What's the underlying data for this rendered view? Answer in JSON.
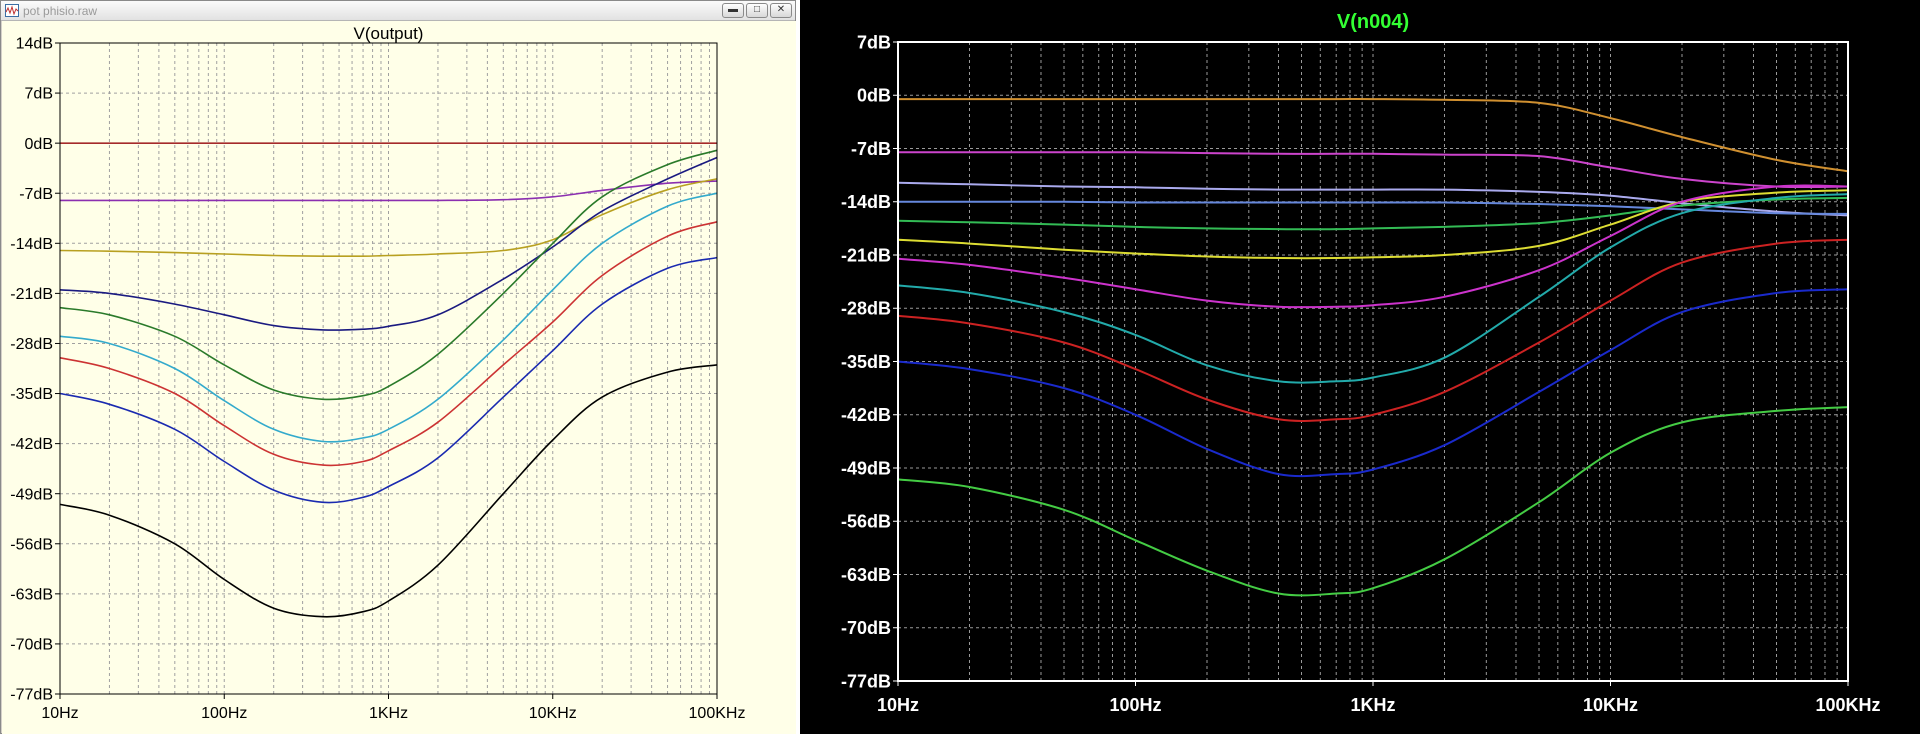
{
  "window": {
    "title": "pot phisio.raw",
    "minimize_icon": "minimize-icon",
    "maximize_icon": "maximize-icon",
    "close_icon": "close-icon"
  },
  "chart_data": [
    {
      "type": "line",
      "title": "V(output)",
      "x_scale": "log",
      "xlim": [
        10,
        100000
      ],
      "ylim": [
        -77,
        14
      ],
      "grid": true,
      "background": "#ffffe8",
      "x_tick_labels": [
        "10Hz",
        "100Hz",
        "1KHz",
        "10KHz",
        "100KHz"
      ],
      "y_tick_labels": [
        "14dB",
        "7dB",
        "0dB",
        "-7dB",
        "-14dB",
        "-21dB",
        "-28dB",
        "-35dB",
        "-42dB",
        "-49dB",
        "-56dB",
        "-63dB",
        "-70dB",
        "-77dB"
      ],
      "x": [
        10,
        20,
        50,
        100,
        200,
        400,
        700,
        1000,
        2000,
        5000,
        10000,
        20000,
        50000,
        100000
      ],
      "series": [
        {
          "color": "#a52a2a",
          "values": [
            0,
            0,
            0,
            0,
            0,
            0,
            0,
            0,
            0,
            0,
            0,
            0,
            0,
            0
          ]
        },
        {
          "color": "#8b2fb0",
          "values": [
            -8,
            -8,
            -8,
            -8,
            -8,
            -8,
            -8,
            -8,
            -8,
            -7.9,
            -7.5,
            -6.6,
            -5.6,
            -5.3
          ]
        },
        {
          "color": "#b8a020",
          "values": [
            -15,
            -15.1,
            -15.3,
            -15.5,
            -15.7,
            -15.8,
            -15.8,
            -15.7,
            -15.5,
            -15,
            -13.5,
            -10,
            -6.5,
            -5
          ]
        },
        {
          "color": "#1a1a80",
          "values": [
            -20.5,
            -21,
            -22.5,
            -24,
            -25.5,
            -26.1,
            -26,
            -25.6,
            -24,
            -19,
            -14.5,
            -9.5,
            -5,
            -2
          ]
        },
        {
          "color": "#2a7a2a",
          "values": [
            -23,
            -24,
            -27,
            -31,
            -34.5,
            -35.8,
            -35.3,
            -34,
            -29.5,
            -21,
            -14,
            -7.5,
            -3,
            -1
          ]
        },
        {
          "color": "#33aacc",
          "values": [
            -27,
            -28,
            -31.5,
            -36,
            -40,
            -41.7,
            -41.2,
            -40,
            -35.8,
            -27.5,
            -20.5,
            -14,
            -8.8,
            -7
          ]
        },
        {
          "color": "#cc3333",
          "values": [
            -30,
            -31.5,
            -35,
            -39.5,
            -43.5,
            -45,
            -44.5,
            -43,
            -39,
            -31,
            -25,
            -18.5,
            -13,
            -11
          ]
        },
        {
          "color": "#1a2ab0",
          "values": [
            -35,
            -36.5,
            -40,
            -44.5,
            -48.5,
            -50.2,
            -49.5,
            -48,
            -44,
            -35.5,
            -29,
            -22.5,
            -17.5,
            -16
          ]
        },
        {
          "color": "#000000",
          "values": [
            -50.5,
            -52,
            -56,
            -61,
            -65,
            -66.2,
            -65.5,
            -64,
            -59,
            -49,
            -41.5,
            -35.5,
            -32,
            -31
          ]
        }
      ]
    },
    {
      "type": "line",
      "title": "V(n004)",
      "x_scale": "log",
      "xlim": [
        10,
        100000
      ],
      "ylim": [
        -77,
        7
      ],
      "grid": true,
      "background": "#000000",
      "title_color": "#33ff33",
      "x_tick_labels": [
        "10Hz",
        "100Hz",
        "1KHz",
        "10KHz",
        "100KHz"
      ],
      "y_tick_labels": [
        "7dB",
        "0dB",
        "-7dB",
        "-14dB",
        "-21dB",
        "-28dB",
        "-35dB",
        "-42dB",
        "-49dB",
        "-56dB",
        "-63dB",
        "-70dB",
        "-77dB"
      ],
      "x": [
        10,
        20,
        50,
        100,
        200,
        400,
        700,
        1000,
        2000,
        5000,
        10000,
        20000,
        50000,
        100000
      ],
      "series": [
        {
          "color": "#d09030",
          "values": [
            -0.5,
            -0.5,
            -0.5,
            -0.5,
            -0.5,
            -0.5,
            -0.5,
            -0.5,
            -0.6,
            -1,
            -3,
            -5.5,
            -8.5,
            -10
          ]
        },
        {
          "color": "#cc44cc",
          "values": [
            -7.5,
            -7.5,
            -7.5,
            -7.5,
            -7.6,
            -7.7,
            -7.7,
            -7.7,
            -7.8,
            -8,
            -9.5,
            -11,
            -12,
            -12
          ]
        },
        {
          "color": "#aaaaee",
          "values": [
            -11.5,
            -11.7,
            -12,
            -12.1,
            -12.3,
            -12.4,
            -12.4,
            -12.4,
            -12.4,
            -12.7,
            -13.2,
            -14.2,
            -15.3,
            -15.8
          ]
        },
        {
          "color": "#6688dd",
          "values": [
            -14,
            -14,
            -14,
            -14.1,
            -14.1,
            -14.1,
            -14.1,
            -14.1,
            -14.1,
            -14.3,
            -14.6,
            -15,
            -15.5,
            -15.6
          ]
        },
        {
          "color": "#33bb55",
          "values": [
            -16.5,
            -16.7,
            -17,
            -17.3,
            -17.5,
            -17.6,
            -17.6,
            -17.5,
            -17.3,
            -16.8,
            -15.8,
            -14.5,
            -13.7,
            -13.5
          ]
        },
        {
          "color": "#dddd33",
          "values": [
            -19,
            -19.5,
            -20.3,
            -20.8,
            -21.2,
            -21.4,
            -21.4,
            -21.3,
            -21,
            -19.8,
            -17,
            -14,
            -12.8,
            -12.5
          ]
        },
        {
          "color": "#cc33cc",
          "values": [
            -21.5,
            -22.3,
            -24,
            -25.5,
            -27,
            -27.8,
            -27.8,
            -27.6,
            -26.5,
            -23,
            -18.5,
            -14,
            -12,
            -12
          ]
        },
        {
          "color": "#22aaaa",
          "values": [
            -25,
            -26,
            -28.5,
            -31.5,
            -35.5,
            -37.6,
            -37.6,
            -37.1,
            -34.5,
            -26.5,
            -20,
            -15.5,
            -13.5,
            -13
          ]
        },
        {
          "color": "#cc2222",
          "values": [
            -29,
            -30,
            -32.5,
            -36,
            -40,
            -42.6,
            -42.6,
            -42,
            -39,
            -32.5,
            -27,
            -22,
            -19.5,
            -19
          ]
        },
        {
          "color": "#1a2acc",
          "values": [
            -35,
            -36,
            -38.5,
            -42,
            -46.5,
            -49.8,
            -49.8,
            -49.2,
            -46,
            -39,
            -33.5,
            -28.5,
            -26,
            -25.5
          ]
        },
        {
          "color": "#44cc44",
          "values": [
            -50.5,
            -51.5,
            -54.5,
            -58.5,
            -62.5,
            -65.5,
            -65.5,
            -64.8,
            -61,
            -53.5,
            -47,
            -43,
            -41.5,
            -41
          ]
        }
      ]
    }
  ]
}
